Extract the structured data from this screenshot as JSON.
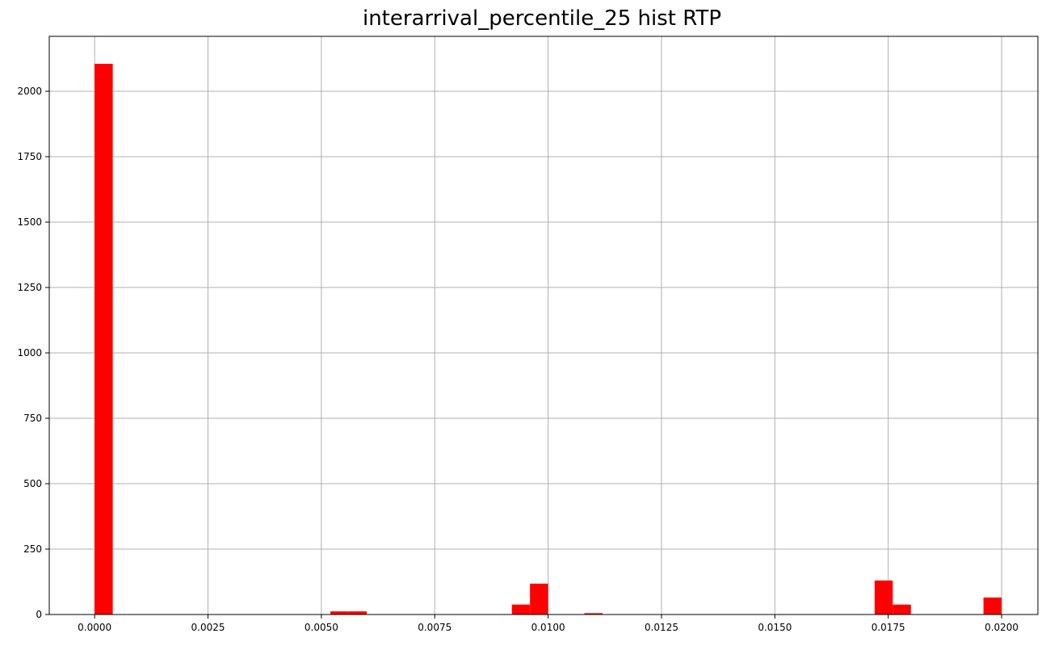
{
  "chart_data": {
    "type": "bar",
    "title": "interarrival_percentile_25 hist RTP",
    "xlabel": "",
    "ylabel": "",
    "xlim": [
      -0.001,
      0.0208
    ],
    "ylim": [
      0,
      2210
    ],
    "grid": true,
    "bar_color": "#ff0000",
    "bin_width": 0.0004,
    "bins": [
      {
        "x0": 0.0,
        "count": 2105
      },
      {
        "x0": 0.0052,
        "count": 12
      },
      {
        "x0": 0.0056,
        "count": 12
      },
      {
        "x0": 0.0092,
        "count": 38
      },
      {
        "x0": 0.0096,
        "count": 118
      },
      {
        "x0": 0.0108,
        "count": 5
      },
      {
        "x0": 0.0172,
        "count": 130
      },
      {
        "x0": 0.0176,
        "count": 38
      },
      {
        "x0": 0.0196,
        "count": 65
      }
    ],
    "x_ticks": [
      {
        "value": 0.0,
        "label": "0.0000"
      },
      {
        "value": 0.0025,
        "label": "0.0025"
      },
      {
        "value": 0.005,
        "label": "0.0050"
      },
      {
        "value": 0.0075,
        "label": "0.0075"
      },
      {
        "value": 0.01,
        "label": "0.0100"
      },
      {
        "value": 0.0125,
        "label": "0.0125"
      },
      {
        "value": 0.015,
        "label": "0.0150"
      },
      {
        "value": 0.0175,
        "label": "0.0175"
      },
      {
        "value": 0.02,
        "label": "0.0200"
      }
    ],
    "y_ticks": [
      {
        "value": 0,
        "label": "0"
      },
      {
        "value": 250,
        "label": "250"
      },
      {
        "value": 500,
        "label": "500"
      },
      {
        "value": 750,
        "label": "750"
      },
      {
        "value": 1000,
        "label": "1000"
      },
      {
        "value": 1250,
        "label": "1250"
      },
      {
        "value": 1500,
        "label": "1500"
      },
      {
        "value": 1750,
        "label": "1750"
      },
      {
        "value": 2000,
        "label": "2000"
      }
    ]
  }
}
